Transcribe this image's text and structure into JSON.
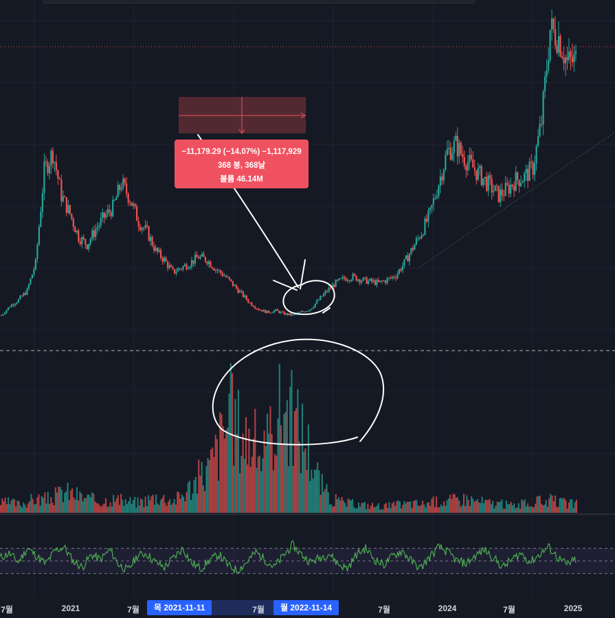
{
  "measurement": {
    "line1": "−11,179.29 (−14.07%) −1,117,929",
    "line2": "368 봉, 368날",
    "line3": "볼륨 46.14M"
  },
  "x_axis": {
    "labels": [
      "7월",
      "2021",
      "7월",
      "7월",
      "7월",
      "2024",
      "7월",
      "2025"
    ],
    "crosshair_start": "목 2021-11-11",
    "crosshair_end": "월 2022-11-14"
  },
  "colors": {
    "background": "#151924",
    "up": "#26a69a",
    "down": "#ef5350",
    "rsi_line": "#4caf50",
    "measure_box": "#f05160",
    "badge": "#2962ff",
    "annotation": "#ffffff"
  },
  "chart_data": [
    {
      "type": "candlestick",
      "series": [
        {
          "name": "",
          "values": [
            14,
            20,
            24,
            30,
            48,
            108,
            120,
            92,
            80,
            65,
            60,
            70,
            78,
            84,
            100,
            90,
            75,
            68,
            56,
            50,
            42,
            45,
            48,
            52,
            50,
            44,
            40,
            34,
            28,
            22,
            18,
            16,
            17,
            15,
            14,
            16,
            18,
            24,
            30,
            35,
            38,
            39,
            37,
            36,
            35,
            37,
            40,
            48,
            58,
            68,
            80,
            100,
            120,
            125,
            116,
            110,
            104,
            98,
            92,
            96,
            102,
            104,
            110,
            140,
            200,
            195,
            178,
            180
          ]
        }
      ],
      "price_line": 190,
      "dashed_divider": true
    },
    {
      "type": "bar",
      "series": [
        {
          "name": "",
          "values": [
            20,
            22,
            18,
            25,
            30,
            28,
            35,
            45,
            40,
            32,
            28,
            24,
            30,
            26,
            24,
            22,
            28,
            34,
            30,
            26,
            40,
            60,
            80,
            100,
            150,
            210,
            180,
            160,
            140,
            120,
            200,
            230,
            190,
            170,
            120,
            60,
            30,
            24,
            20,
            18,
            16,
            15,
            14,
            16,
            18,
            20,
            18,
            22,
            24,
            26,
            28,
            30,
            25,
            22,
            20,
            18,
            16,
            18,
            20,
            24,
            26,
            22,
            20,
            18
          ]
        }
      ]
    },
    {
      "type": "line",
      "series": [
        {
          "name": "",
          "values": [
            55,
            62,
            48,
            70,
            58,
            45,
            66,
            72,
            50,
            40,
            60,
            52,
            68,
            44,
            35,
            58,
            62,
            48,
            40,
            55,
            70,
            46,
            38,
            52,
            60,
            42,
            35,
            48,
            64,
            52,
            40,
            58,
            75,
            60,
            48,
            55,
            62,
            45,
            38,
            60,
            70,
            52,
            44,
            58,
            66,
            50,
            38,
            56,
            72,
            64,
            50,
            46,
            58,
            68,
            55,
            40,
            52,
            62,
            48,
            60,
            72,
            56,
            44,
            52
          ]
        }
      ],
      "ylim": [
        0,
        100
      ],
      "levels": [
        70,
        50,
        30
      ]
    }
  ]
}
